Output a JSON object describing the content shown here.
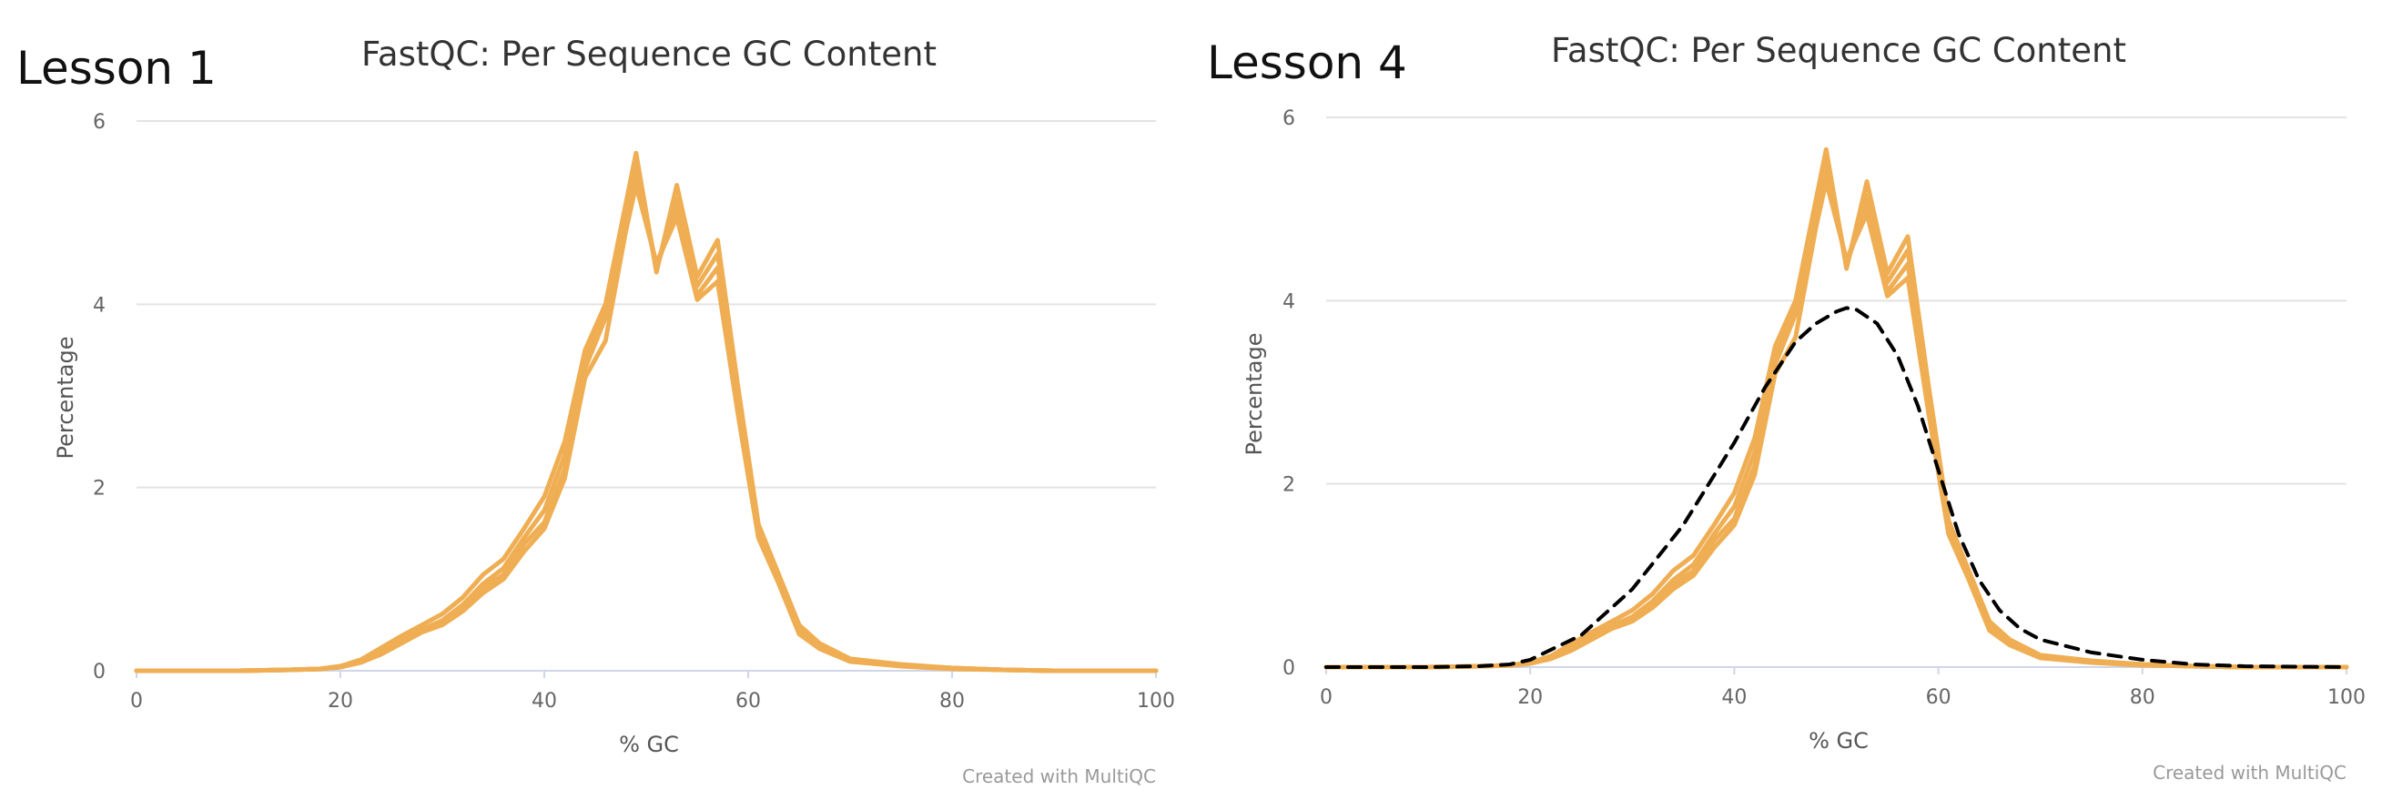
{
  "palette": {
    "series": "#EFAE53",
    "theoretical": "#000000",
    "grid": "#e3e3e3"
  },
  "chart_data": [
    {
      "type": "line",
      "panel_label": "Lesson 1",
      "title": "FastQC: Per Sequence GC Content",
      "xlabel": "% GC",
      "ylabel": "Percentage",
      "xlim": [
        0,
        100
      ],
      "ylim": [
        0,
        6
      ],
      "x_ticks": [
        "0",
        "20",
        "40",
        "60",
        "80",
        "100"
      ],
      "y_ticks": [
        "0",
        "2",
        "4",
        "6"
      ],
      "grid": true,
      "credit": "Created with MultiQC",
      "x": [
        0,
        5,
        10,
        15,
        18,
        20,
        22,
        24,
        26,
        28,
        30,
        32,
        34,
        36,
        38,
        40,
        42,
        44,
        46,
        48,
        49,
        51,
        53,
        55,
        57,
        59,
        61,
        63,
        65,
        67,
        70,
        75,
        80,
        85,
        90,
        100
      ],
      "series": [
        {
          "values": [
            0,
            0,
            0,
            0.01,
            0.02,
            0.05,
            0.12,
            0.25,
            0.38,
            0.5,
            0.62,
            0.8,
            1.05,
            1.22,
            1.55,
            1.9,
            2.5,
            3.5,
            4.0,
            5.1,
            5.65,
            4.35,
            5.3,
            4.3,
            4.7,
            3.1,
            1.6,
            1.05,
            0.5,
            0.3,
            0.13,
            0.07,
            0.03,
            0.01,
            0,
            0
          ]
        },
        {
          "values": [
            0,
            0,
            0,
            0.01,
            0.02,
            0.05,
            0.1,
            0.22,
            0.35,
            0.45,
            0.55,
            0.72,
            0.95,
            1.12,
            1.45,
            1.75,
            2.35,
            3.4,
            3.95,
            5.0,
            5.55,
            4.4,
            5.15,
            4.2,
            4.55,
            3.0,
            1.55,
            1.0,
            0.45,
            0.27,
            0.12,
            0.06,
            0.03,
            0.01,
            0,
            0
          ]
        },
        {
          "values": [
            0,
            0,
            0,
            0.01,
            0.02,
            0.04,
            0.1,
            0.2,
            0.33,
            0.44,
            0.53,
            0.68,
            0.9,
            1.05,
            1.38,
            1.62,
            2.2,
            3.3,
            3.85,
            4.9,
            5.45,
            4.4,
            5.05,
            4.1,
            4.4,
            2.9,
            1.5,
            0.98,
            0.42,
            0.25,
            0.11,
            0.06,
            0.03,
            0.01,
            0,
            0
          ]
        },
        {
          "values": [
            0,
            0,
            0,
            0.01,
            0.02,
            0.04,
            0.09,
            0.18,
            0.3,
            0.42,
            0.5,
            0.65,
            0.85,
            1.0,
            1.3,
            1.55,
            2.1,
            3.2,
            3.6,
            4.8,
            5.3,
            4.45,
            4.95,
            4.05,
            4.25,
            2.8,
            1.45,
            0.95,
            0.4,
            0.24,
            0.1,
            0.05,
            0.02,
            0.01,
            0,
            0
          ]
        }
      ]
    },
    {
      "type": "line",
      "panel_label": "Lesson 4",
      "title": "FastQC: Per Sequence GC Content",
      "xlabel": "% GC",
      "ylabel": "Percentage",
      "xlim": [
        0,
        100
      ],
      "ylim": [
        0,
        6
      ],
      "x_ticks": [
        "0",
        "20",
        "40",
        "60",
        "80",
        "100"
      ],
      "y_ticks": [
        "0",
        "2",
        "4",
        "6"
      ],
      "grid": true,
      "credit": "Created with MultiQC",
      "x": [
        0,
        5,
        10,
        15,
        18,
        20,
        22,
        24,
        26,
        28,
        30,
        32,
        34,
        36,
        38,
        40,
        42,
        44,
        46,
        48,
        49,
        51,
        53,
        55,
        57,
        59,
        61,
        63,
        65,
        67,
        70,
        75,
        80,
        85,
        90,
        100
      ],
      "series": [
        {
          "values": [
            0,
            0,
            0,
            0.01,
            0.02,
            0.05,
            0.12,
            0.25,
            0.38,
            0.5,
            0.62,
            0.8,
            1.05,
            1.22,
            1.55,
            1.9,
            2.5,
            3.5,
            4.0,
            5.1,
            5.65,
            4.35,
            5.3,
            4.3,
            4.7,
            3.1,
            1.6,
            1.05,
            0.5,
            0.3,
            0.13,
            0.07,
            0.03,
            0.01,
            0,
            0
          ]
        },
        {
          "values": [
            0,
            0,
            0,
            0.01,
            0.02,
            0.05,
            0.1,
            0.22,
            0.35,
            0.45,
            0.55,
            0.72,
            0.95,
            1.12,
            1.45,
            1.75,
            2.35,
            3.4,
            3.95,
            5.0,
            5.55,
            4.4,
            5.15,
            4.2,
            4.55,
            3.0,
            1.55,
            1.0,
            0.45,
            0.27,
            0.12,
            0.06,
            0.03,
            0.01,
            0,
            0
          ]
        },
        {
          "values": [
            0,
            0,
            0,
            0.01,
            0.02,
            0.04,
            0.1,
            0.2,
            0.33,
            0.44,
            0.53,
            0.68,
            0.9,
            1.05,
            1.38,
            1.62,
            2.2,
            3.3,
            3.85,
            4.9,
            5.45,
            4.4,
            5.05,
            4.1,
            4.4,
            2.9,
            1.5,
            0.98,
            0.42,
            0.25,
            0.11,
            0.06,
            0.03,
            0.01,
            0,
            0
          ]
        },
        {
          "values": [
            0,
            0,
            0,
            0.01,
            0.02,
            0.04,
            0.09,
            0.18,
            0.3,
            0.42,
            0.5,
            0.65,
            0.85,
            1.0,
            1.3,
            1.55,
            2.1,
            3.2,
            3.6,
            4.8,
            5.3,
            4.45,
            4.95,
            4.05,
            4.25,
            2.8,
            1.45,
            0.95,
            0.4,
            0.24,
            0.1,
            0.05,
            0.02,
            0.01,
            0,
            0
          ]
        }
      ],
      "theoretical": {
        "style": "dashed",
        "x": [
          0,
          10,
          15,
          18,
          20,
          25,
          30,
          35,
          40,
          43,
          46,
          48,
          50,
          51,
          52,
          54,
          56,
          58,
          60,
          62,
          64,
          66,
          68,
          70,
          75,
          80,
          85,
          90,
          100
        ],
        "values": [
          0,
          0,
          0.01,
          0.03,
          0.08,
          0.35,
          0.85,
          1.55,
          2.45,
          3.05,
          3.55,
          3.75,
          3.88,
          3.92,
          3.9,
          3.75,
          3.4,
          2.85,
          2.15,
          1.45,
          0.95,
          0.62,
          0.42,
          0.3,
          0.16,
          0.08,
          0.03,
          0.01,
          0
        ]
      }
    }
  ]
}
